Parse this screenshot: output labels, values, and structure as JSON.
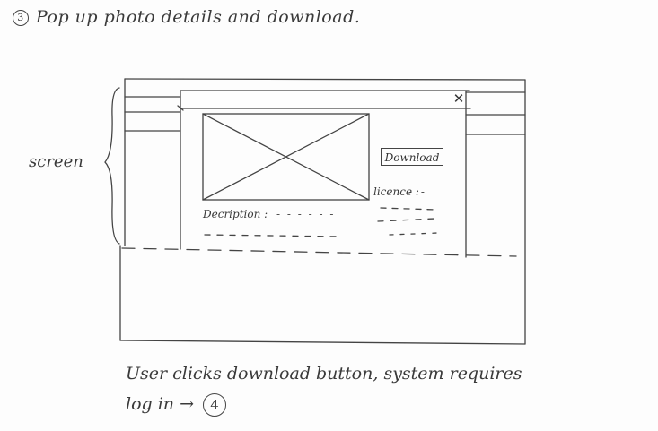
{
  "heading": {
    "number": "3",
    "text": "Pop up photo details and download."
  },
  "side_label": "screen",
  "popup": {
    "close_icon": "✕",
    "image_placeholder_icon": "image-placeholder-icon",
    "download_label": "Download",
    "licence_label": "licence :",
    "licence_value": "- -",
    "description_label": "Decription :",
    "description_value": "- - - - - -"
  },
  "caption": {
    "line1": "User clicks download button, system requires",
    "line2": "log in →",
    "ref": "4"
  }
}
